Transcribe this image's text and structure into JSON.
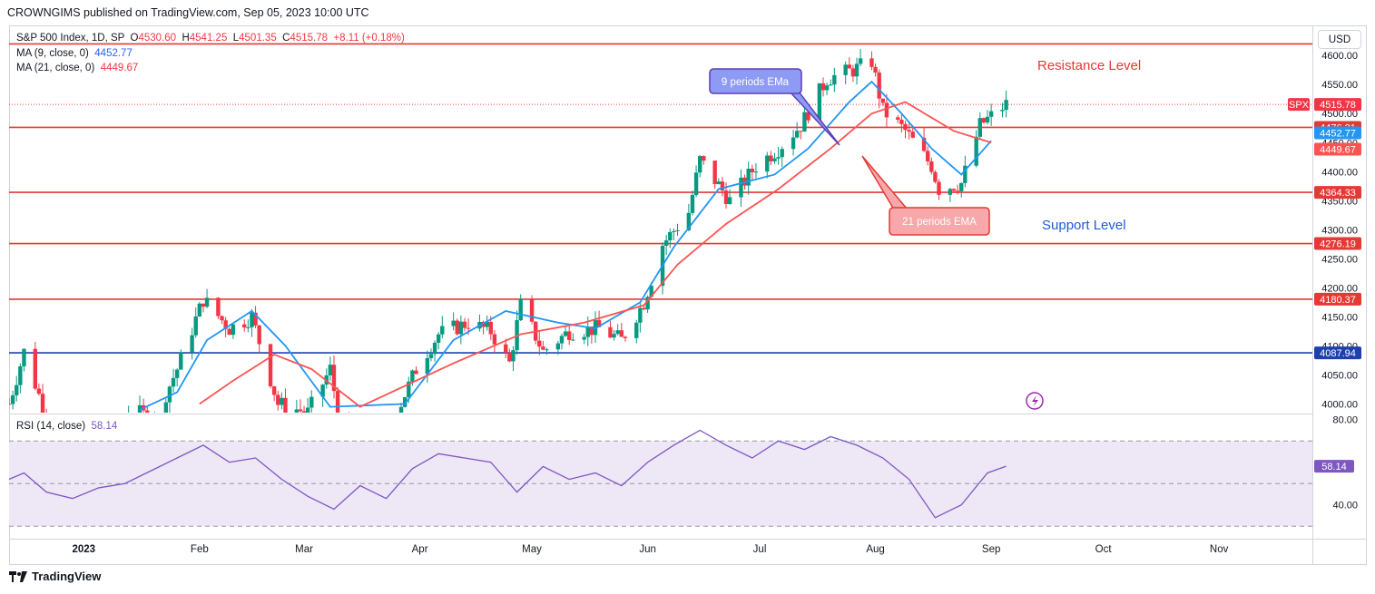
{
  "header": {
    "published": "CROWNGIMS published on TradingView.com, Sep 05, 2023 10:00 UTC"
  },
  "legend": {
    "symbol": "S&P 500 Index, 1D, SP",
    "o_label": "O",
    "o": "4530.60",
    "h_label": "H",
    "h": "4541.25",
    "l_label": "L",
    "l": "4501.35",
    "c_label": "C",
    "c": "4515.78",
    "change": "+8.11 (+0.18%)",
    "ma9_label": "MA (9, close, 0)",
    "ma9_value": "4452.77",
    "ma21_label": "MA (21, close, 0)",
    "ma21_value": "4449.67",
    "rsi_label": "RSI (14, close)",
    "rsi_value": "58.14"
  },
  "currency_button": "USD",
  "brand": "TradingView",
  "colors": {
    "up": "#089981",
    "down": "#f23645",
    "ma9": "#2196f3",
    "ma21": "#ff5252",
    "resistance": "#e53935",
    "support": "#1e40af",
    "rsi": "#7e57c2",
    "rsi_band": "#ede7f6"
  },
  "chart_data": [
    {
      "type": "candlestick",
      "title": "S&P 500 Index, 1D, SP",
      "ylim": [
        3985,
        4630
      ],
      "y_ticks": [
        4000,
        4050,
        4100,
        4150,
        4200,
        4250,
        4300,
        4350,
        4400,
        4450,
        4500,
        4550,
        4600
      ],
      "y_tick_labels": [
        "4000.00",
        "4050.00",
        "4100.00",
        "4150.00",
        "4200.00",
        "4250.00",
        "4300.00",
        "4350.00",
        "4400.00",
        "4450.00",
        "4500.00",
        "4550.00",
        "4600.00"
      ],
      "x_labels": [
        "2023",
        "Feb",
        "Mar",
        "Apr",
        "May",
        "Jun",
        "Jul",
        "Aug",
        "Sep",
        "Oct",
        "Nov"
      ],
      "x_label_dates": [
        "2023-01-01",
        "2023-02-01",
        "2023-03-01",
        "2023-04-01",
        "2023-05-01",
        "2023-06-01",
        "2023-07-01",
        "2023-08-01",
        "2023-09-01",
        "2023-10-01",
        "2023-11-01"
      ],
      "horizontal_levels": [
        {
          "value": 4620,
          "label": "",
          "color": "#e53935"
        },
        {
          "value": 4476.21,
          "label": "4476.21",
          "color": "#e53935"
        },
        {
          "value": 4364.33,
          "label": "4364.33",
          "color": "#e53935"
        },
        {
          "value": 4276.19,
          "label": "4276.19",
          "color": "#e53935"
        },
        {
          "value": 4180.37,
          "label": "4180.37",
          "color": "#e53935"
        },
        {
          "value": 4087.94,
          "label": "4087.94",
          "color": "#1e40af"
        }
      ],
      "last_price": {
        "value": 4515.78,
        "label": "4515.78",
        "symbol": "SPX"
      },
      "ma_labels": [
        {
          "value": 4452.77,
          "label": "4452.77",
          "color": "#2196f3"
        },
        {
          "value": 4449.67,
          "label": "4449.67",
          "color": "#ff5252"
        }
      ],
      "annotations": [
        {
          "text": "Resistance Level"
        },
        {
          "text": "Support Level"
        },
        {
          "text": "9 periods EMa"
        },
        {
          "text": "21 periods EMA"
        }
      ],
      "series": [
        {
          "name": "MA (9, close, 0)",
          "dates": [
            "2023-01-16",
            "2023-01-26",
            "2023-02-03",
            "2023-02-15",
            "2023-02-24",
            "2023-03-08",
            "2023-03-28",
            "2023-04-10",
            "2023-04-24",
            "2023-05-08",
            "2023-05-18",
            "2023-05-30",
            "2023-06-08",
            "2023-06-20",
            "2023-07-05",
            "2023-07-14",
            "2023-07-25",
            "2023-07-31",
            "2023-08-08",
            "2023-08-16",
            "2023-08-24",
            "2023-09-01"
          ],
          "values": [
            3990,
            4020,
            4110,
            4160,
            4100,
            3995,
            4000,
            4110,
            4160,
            4140,
            4130,
            4175,
            4270,
            4370,
            4395,
            4440,
            4520,
            4555,
            4500,
            4440,
            4395,
            4453
          ]
        },
        {
          "name": "MA (21, close, 0)",
          "dates": [
            "2023-02-01",
            "2023-02-10",
            "2023-02-21",
            "2023-03-03",
            "2023-03-16",
            "2023-04-10",
            "2023-04-28",
            "2023-05-15",
            "2023-05-31",
            "2023-06-09",
            "2023-06-22",
            "2023-07-06",
            "2023-07-20",
            "2023-07-31",
            "2023-08-09",
            "2023-08-22",
            "2023-09-01"
          ],
          "values": [
            4000,
            4040,
            4085,
            4060,
            3995,
            4070,
            4120,
            4140,
            4170,
            4240,
            4310,
            4370,
            4440,
            4500,
            4520,
            4470,
            4450
          ]
        }
      ]
    },
    {
      "type": "line",
      "title": "RSI (14, close)",
      "ylim": [
        25,
        82
      ],
      "y_ticks": [
        40,
        80
      ],
      "y_tick_labels": [
        "40.00",
        "80.00"
      ],
      "band": [
        30,
        70
      ],
      "last_value": 58.14,
      "dates": [
        "2022-12-12",
        "2022-12-16",
        "2022-12-22",
        "2022-12-29",
        "2023-01-05",
        "2023-01-12",
        "2023-01-19",
        "2023-01-26",
        "2023-02-02",
        "2023-02-09",
        "2023-02-16",
        "2023-02-23",
        "2023-03-02",
        "2023-03-09",
        "2023-03-16",
        "2023-03-23",
        "2023-03-30",
        "2023-04-06",
        "2023-04-13",
        "2023-04-20",
        "2023-04-27",
        "2023-05-04",
        "2023-05-11",
        "2023-05-18",
        "2023-05-25",
        "2023-06-01",
        "2023-06-08",
        "2023-06-15",
        "2023-06-22",
        "2023-06-29",
        "2023-07-06",
        "2023-07-13",
        "2023-07-20",
        "2023-07-27",
        "2023-08-03",
        "2023-08-10",
        "2023-08-17",
        "2023-08-24",
        "2023-08-31",
        "2023-09-05"
      ],
      "values": [
        52,
        55,
        46,
        43,
        48,
        50,
        56,
        62,
        68,
        60,
        62,
        52,
        44,
        38,
        49,
        43,
        57,
        64,
        62,
        60,
        46,
        58,
        52,
        55,
        49,
        60,
        68,
        75,
        68,
        62,
        70,
        66,
        72,
        68,
        62,
        52,
        34,
        40,
        55,
        58.14
      ]
    }
  ]
}
